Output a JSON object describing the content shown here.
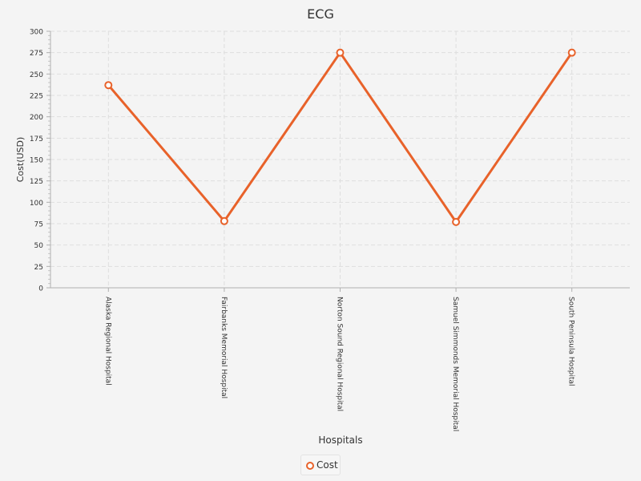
{
  "chart_data": {
    "type": "line",
    "title": "ECG",
    "xlabel": "Hospitals",
    "ylabel": "Cost(USD)",
    "categories": [
      "Alaska Regional Hospital",
      "Fairbanks Memorial Hospital",
      "Norton Sound Regional Hospital",
      "Samuel Simmonds Memorial Hospital",
      "South Peninsula Hospital"
    ],
    "series": [
      {
        "name": "Cost",
        "values": [
          237,
          78,
          275,
          77,
          275
        ]
      }
    ],
    "ylim": [
      0,
      300
    ],
    "yticks": [
      0,
      25,
      50,
      75,
      100,
      125,
      150,
      175,
      200,
      225,
      250,
      275,
      300
    ],
    "grid": true,
    "legend": "bottom-center",
    "color": "#e8622a"
  }
}
